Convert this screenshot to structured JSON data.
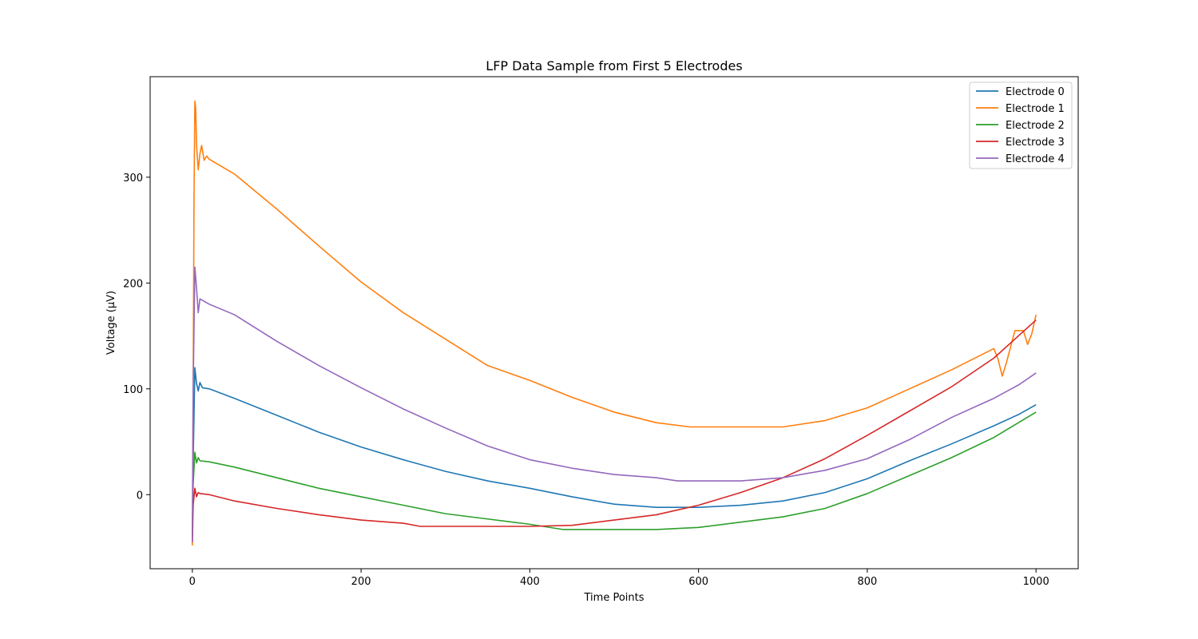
{
  "chart_data": {
    "type": "line",
    "title": "LFP Data Sample from First 5 Electrodes",
    "xlabel": "Time Points",
    "ylabel": "Voltage (µV)",
    "xlim": [
      -50,
      1050
    ],
    "ylim": [
      -70,
      395
    ],
    "xticks": [
      0,
      200,
      400,
      600,
      800,
      1000
    ],
    "xtick_labels": [
      "0",
      "200",
      "400",
      "600",
      "800",
      "1000"
    ],
    "yticks": [
      0,
      100,
      200,
      300
    ],
    "ytick_labels": [
      "0",
      "100",
      "200",
      "300"
    ],
    "grid": false,
    "legend_position": "top-right",
    "series": [
      {
        "name": "Electrode 0",
        "color": "#1f77b4",
        "points": [
          [
            0,
            -43
          ],
          [
            1,
            30
          ],
          [
            3,
            120
          ],
          [
            5,
            105
          ],
          [
            7,
            98
          ],
          [
            9,
            106
          ],
          [
            12,
            101
          ],
          [
            20,
            100
          ],
          [
            50,
            91
          ],
          [
            100,
            75
          ],
          [
            150,
            59
          ],
          [
            200,
            45
          ],
          [
            250,
            33
          ],
          [
            300,
            22
          ],
          [
            350,
            13
          ],
          [
            400,
            6
          ],
          [
            450,
            -2
          ],
          [
            500,
            -9
          ],
          [
            550,
            -12
          ],
          [
            600,
            -12
          ],
          [
            650,
            -10
          ],
          [
            700,
            -6
          ],
          [
            750,
            2
          ],
          [
            800,
            15
          ],
          [
            850,
            32
          ],
          [
            900,
            48
          ],
          [
            950,
            65
          ],
          [
            980,
            76
          ],
          [
            1000,
            85
          ]
        ]
      },
      {
        "name": "Electrode 1",
        "color": "#ff7f0e",
        "points": [
          [
            0,
            -48
          ],
          [
            1,
            100
          ],
          [
            2,
            280
          ],
          [
            3,
            372
          ],
          [
            4,
            365
          ],
          [
            5,
            330
          ],
          [
            7,
            307
          ],
          [
            9,
            322
          ],
          [
            11,
            330
          ],
          [
            14,
            316
          ],
          [
            17,
            320
          ],
          [
            20,
            317
          ],
          [
            50,
            303
          ],
          [
            100,
            270
          ],
          [
            150,
            235
          ],
          [
            200,
            201
          ],
          [
            250,
            172
          ],
          [
            300,
            147
          ],
          [
            350,
            122
          ],
          [
            400,
            108
          ],
          [
            450,
            92
          ],
          [
            500,
            78
          ],
          [
            550,
            68
          ],
          [
            590,
            64
          ],
          [
            650,
            64
          ],
          [
            700,
            64
          ],
          [
            750,
            70
          ],
          [
            800,
            82
          ],
          [
            850,
            100
          ],
          [
            900,
            118
          ],
          [
            950,
            138
          ],
          [
            955,
            128
          ],
          [
            960,
            112
          ],
          [
            965,
            125
          ],
          [
            975,
            155
          ],
          [
            985,
            155
          ],
          [
            990,
            142
          ],
          [
            995,
            152
          ],
          [
            1000,
            170
          ]
        ]
      },
      {
        "name": "Electrode 2",
        "color": "#2ca02c",
        "points": [
          [
            0,
            -40
          ],
          [
            1,
            10
          ],
          [
            3,
            40
          ],
          [
            5,
            30
          ],
          [
            7,
            35
          ],
          [
            9,
            32
          ],
          [
            20,
            31
          ],
          [
            50,
            26
          ],
          [
            100,
            16
          ],
          [
            150,
            6
          ],
          [
            200,
            -2
          ],
          [
            250,
            -10
          ],
          [
            300,
            -18
          ],
          [
            350,
            -23
          ],
          [
            400,
            -28
          ],
          [
            440,
            -33
          ],
          [
            500,
            -33
          ],
          [
            550,
            -33
          ],
          [
            600,
            -31
          ],
          [
            650,
            -26
          ],
          [
            700,
            -21
          ],
          [
            750,
            -13
          ],
          [
            800,
            1
          ],
          [
            850,
            18
          ],
          [
            900,
            35
          ],
          [
            950,
            54
          ],
          [
            1000,
            78
          ]
        ]
      },
      {
        "name": "Electrode 3",
        "color": "#d62728",
        "points": [
          [
            0,
            -45
          ],
          [
            1,
            -10
          ],
          [
            3,
            6
          ],
          [
            5,
            -2
          ],
          [
            7,
            2
          ],
          [
            9,
            1
          ],
          [
            20,
            0
          ],
          [
            50,
            -6
          ],
          [
            100,
            -13
          ],
          [
            150,
            -19
          ],
          [
            200,
            -24
          ],
          [
            250,
            -27
          ],
          [
            270,
            -30
          ],
          [
            300,
            -30
          ],
          [
            350,
            -30
          ],
          [
            400,
            -30
          ],
          [
            450,
            -29
          ],
          [
            500,
            -24
          ],
          [
            550,
            -19
          ],
          [
            600,
            -10
          ],
          [
            650,
            2
          ],
          [
            700,
            16
          ],
          [
            750,
            34
          ],
          [
            800,
            56
          ],
          [
            850,
            79
          ],
          [
            900,
            102
          ],
          [
            950,
            129
          ],
          [
            1000,
            165
          ]
        ]
      },
      {
        "name": "Electrode 4",
        "color": "#9467bd",
        "points": [
          [
            0,
            -45
          ],
          [
            1,
            100
          ],
          [
            3,
            215
          ],
          [
            5,
            195
          ],
          [
            7,
            172
          ],
          [
            9,
            185
          ],
          [
            20,
            180
          ],
          [
            50,
            170
          ],
          [
            100,
            145
          ],
          [
            150,
            122
          ],
          [
            200,
            101
          ],
          [
            250,
            81
          ],
          [
            300,
            63
          ],
          [
            350,
            46
          ],
          [
            400,
            33
          ],
          [
            450,
            25
          ],
          [
            500,
            19
          ],
          [
            550,
            16
          ],
          [
            575,
            13
          ],
          [
            600,
            13
          ],
          [
            650,
            13
          ],
          [
            700,
            16
          ],
          [
            750,
            23
          ],
          [
            800,
            34
          ],
          [
            850,
            52
          ],
          [
            900,
            73
          ],
          [
            950,
            91
          ],
          [
            980,
            104
          ],
          [
            1000,
            115
          ]
        ]
      }
    ]
  }
}
